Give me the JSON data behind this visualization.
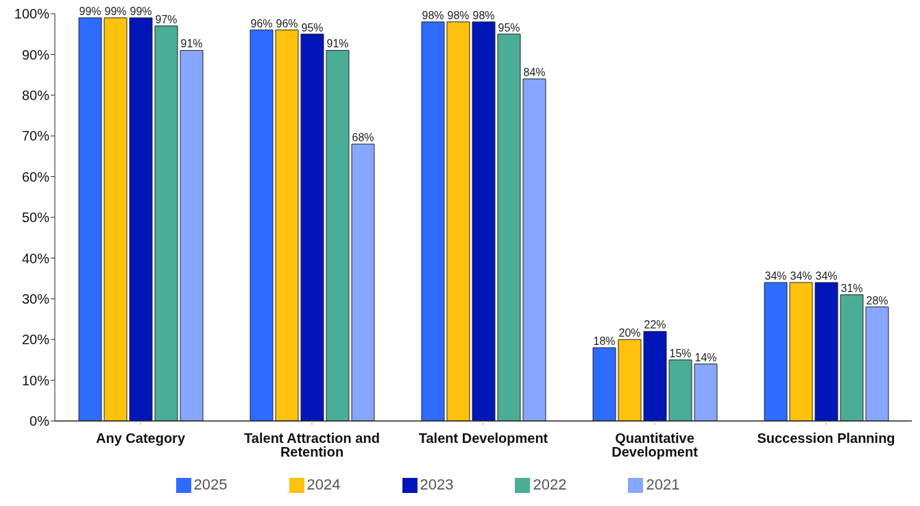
{
  "chart_data": {
    "type": "bar",
    "categories": [
      "Any Category",
      "Talent Attraction and Retention",
      "Talent Development",
      "Quantitative Development",
      "Succession Planning"
    ],
    "series": [
      {
        "name": "2025",
        "color": "#2e6bff",
        "values": [
          99,
          96,
          98,
          18,
          34
        ],
        "value_labels": [
          "99%",
          "96%",
          "98%",
          "18%",
          "34%"
        ]
      },
      {
        "name": "2024",
        "color": "#ffc20e",
        "values": [
          99,
          96,
          98,
          20,
          34
        ],
        "value_labels": [
          "99%",
          "96%",
          "98%",
          "20%",
          "34%"
        ]
      },
      {
        "name": "2023",
        "color": "#0016b8",
        "values": [
          99,
          95,
          98,
          22,
          34
        ],
        "value_labels": [
          "99%",
          "95%",
          "98%",
          "22%",
          "34%"
        ]
      },
      {
        "name": "2022",
        "color": "#4aae96",
        "values": [
          97,
          91,
          95,
          15,
          31
        ],
        "value_labels": [
          "97%",
          "91%",
          "95%",
          "15%",
          "31%"
        ]
      },
      {
        "name": "2021",
        "color": "#87a6ff",
        "values": [
          91,
          68,
          84,
          14,
          28
        ],
        "value_labels": [
          "91%",
          "68%",
          "84%",
          "14%",
          "28%"
        ]
      }
    ],
    "ylim": [
      0,
      100
    ],
    "yticks": [
      {
        "value": 0,
        "label": "0%"
      },
      {
        "value": 10,
        "label": "10%"
      },
      {
        "value": 20,
        "label": "20%"
      },
      {
        "value": 30,
        "label": "30%"
      },
      {
        "value": 40,
        "label": "40%"
      },
      {
        "value": 50,
        "label": "50%"
      },
      {
        "value": 60,
        "label": "60%"
      },
      {
        "value": 70,
        "label": "70%"
      },
      {
        "value": 80,
        "label": "80%"
      },
      {
        "value": 90,
        "label": "90%"
      },
      {
        "value": 100,
        "label": "100%"
      }
    ],
    "grid": false,
    "legend": "bottom"
  }
}
